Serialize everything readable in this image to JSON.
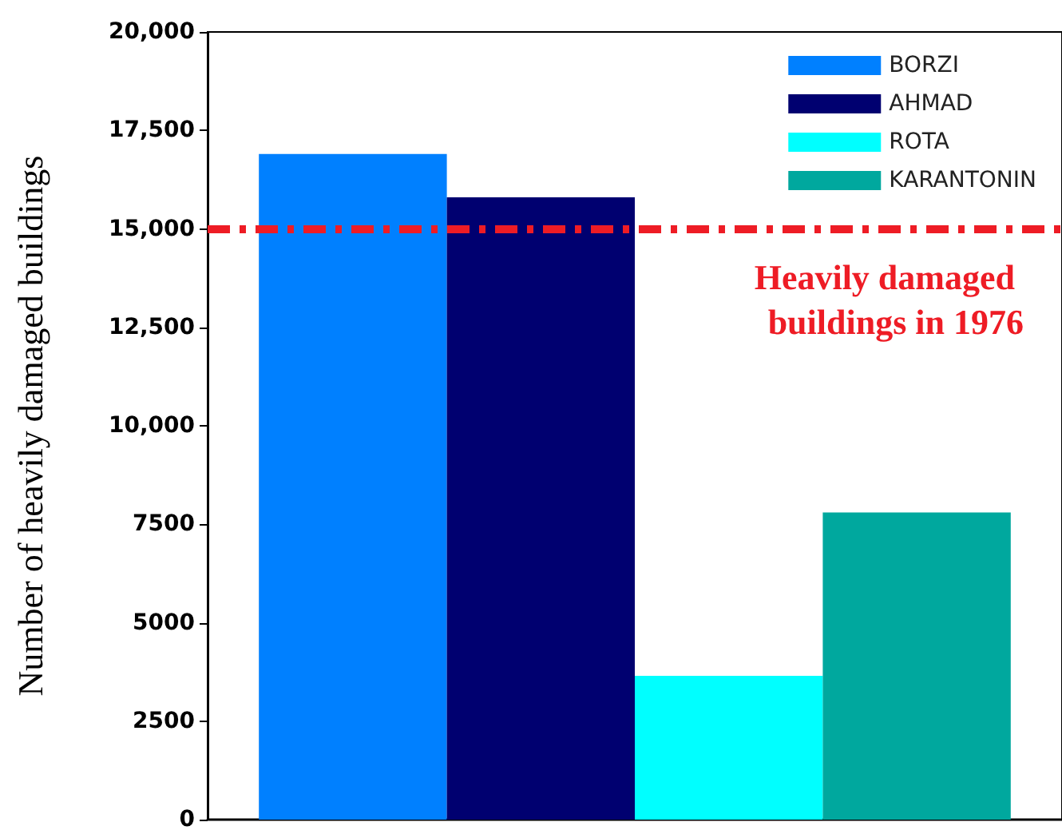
{
  "chart_data": {
    "type": "bar",
    "ylabel": "Number of heavily damaged buildings",
    "categories": [
      null
    ],
    "series": [
      {
        "name": "BORZI",
        "color": "#0080ff",
        "values": [
          16900
        ]
      },
      {
        "name": "AHMAD",
        "color": "#000070",
        "values": [
          15800
        ]
      },
      {
        "name": "ROTA",
        "color": "#00ffff",
        "values": [
          3650
        ]
      },
      {
        "name": "KARANTONIN",
        "color": "#00a89e",
        "values": [
          7800
        ]
      }
    ],
    "ylim": [
      0,
      20000
    ],
    "yticks": [
      0,
      {
        "value": 2500,
        "label": "2500"
      },
      {
        "value": 5000,
        "label": "5000"
      },
      {
        "value": 7500,
        "label": "7500"
      },
      {
        "value": 10000,
        "label": "10,000"
      },
      {
        "value": 12500,
        "label": "12,500"
      },
      {
        "value": 15000,
        "label": "15,000"
      },
      {
        "value": 17500,
        "label": "17,500"
      },
      {
        "value": 20000,
        "label": "20,000"
      }
    ],
    "ref_lines": [
      {
        "axis": "y",
        "value": 15000,
        "label": "Heavily damaged buildings in 1976",
        "color": "#ee1c25",
        "line_style": "dashed"
      }
    ],
    "legend": "top right",
    "grid": false
  }
}
